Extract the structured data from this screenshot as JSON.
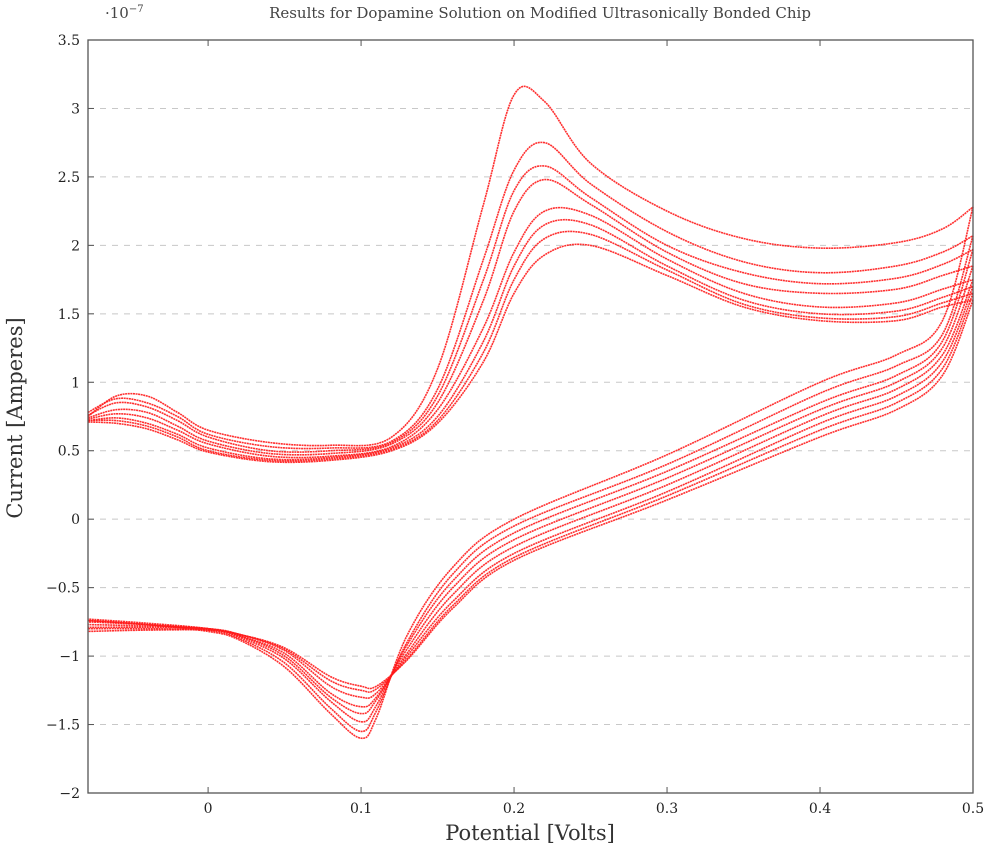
{
  "chart_data": {
    "type": "line",
    "title": "Results for Dopamine Solution on Modified Ultrasonically Bonded Chip",
    "y_scale_label": "·10",
    "y_scale_exponent": "−7",
    "xlabel": "Potential [Volts]",
    "ylabel": "Current [Amperes]",
    "xlim": [
      -0.0785,
      0.5
    ],
    "ylim": [
      -2,
      3.5
    ],
    "x_ticks": [
      0,
      0.1,
      0.2,
      0.3,
      0.4,
      0.5
    ],
    "x_tick_labels": [
      "0",
      "0.1",
      "0.2",
      "0.3",
      "0.4",
      "0.5"
    ],
    "y_ticks": [
      -2,
      -1.5,
      -1,
      -0.5,
      0,
      0.5,
      1,
      1.5,
      2,
      2.5,
      3,
      3.5
    ],
    "y_tick_labels": [
      "−2",
      "−1.5",
      "−1",
      "−0.5",
      "0",
      "0.5",
      "1",
      "1.5",
      "2",
      "2.5",
      "3",
      "3.5"
    ],
    "grid": "horizontal dashed",
    "line_color": "#ff1a1a",
    "forward_x": [
      -0.0785,
      -0.06,
      -0.04,
      -0.02,
      0,
      0.04,
      0.08,
      0.12,
      0.15,
      0.18,
      0.2,
      0.22,
      0.25,
      0.3,
      0.35,
      0.4,
      0.45,
      0.48,
      0.5
    ],
    "reverse_x": [
      0.5,
      0.48,
      0.45,
      0.4,
      0.3,
      0.2,
      0.16,
      0.13,
      0.11,
      0.1,
      0.08,
      0.05,
      0.02,
      0,
      -0.04,
      -0.0785
    ],
    "series": [
      {
        "forward": [
          0.75,
          0.9,
          0.9,
          0.78,
          0.65,
          0.56,
          0.54,
          0.6,
          1.1,
          2.3,
          3.1,
          3.05,
          2.6,
          2.25,
          2.05,
          1.98,
          2.02,
          2.12,
          2.28
        ],
        "reverse": [
          2.28,
          1.45,
          1.2,
          1.0,
          0.47,
          0.0,
          -0.35,
          -0.85,
          -1.45,
          -1.6,
          -1.42,
          -1.08,
          -0.88,
          -0.82,
          -0.77,
          -0.74
        ]
      },
      {
        "forward": [
          0.78,
          0.88,
          0.85,
          0.75,
          0.62,
          0.53,
          0.52,
          0.57,
          0.95,
          1.9,
          2.55,
          2.75,
          2.45,
          2.1,
          1.88,
          1.8,
          1.85,
          1.95,
          2.07
        ],
        "reverse": [
          2.07,
          1.35,
          1.12,
          0.92,
          0.4,
          -0.05,
          -0.4,
          -0.9,
          -1.4,
          -1.55,
          -1.38,
          -1.05,
          -0.87,
          -0.81,
          -0.77,
          -0.74
        ]
      },
      {
        "forward": [
          0.76,
          0.85,
          0.82,
          0.72,
          0.6,
          0.5,
          0.5,
          0.56,
          0.9,
          1.75,
          2.4,
          2.58,
          2.35,
          2.0,
          1.8,
          1.72,
          1.76,
          1.86,
          1.97
        ],
        "reverse": [
          1.97,
          1.3,
          1.05,
          0.85,
          0.35,
          -0.1,
          -0.45,
          -0.92,
          -1.36,
          -1.48,
          -1.33,
          -1.02,
          -0.86,
          -0.8,
          -0.76,
          -0.73
        ]
      },
      {
        "forward": [
          0.74,
          0.8,
          0.78,
          0.68,
          0.57,
          0.48,
          0.48,
          0.55,
          0.85,
          1.6,
          2.25,
          2.48,
          2.3,
          1.95,
          1.72,
          1.65,
          1.68,
          1.78,
          1.85
        ],
        "reverse": [
          1.85,
          1.25,
          1.0,
          0.8,
          0.3,
          -0.15,
          -0.5,
          -0.95,
          -1.32,
          -1.42,
          -1.3,
          -1.0,
          -0.85,
          -0.8,
          -0.77,
          -0.75
        ]
      },
      {
        "forward": [
          0.73,
          0.77,
          0.74,
          0.65,
          0.55,
          0.46,
          0.46,
          0.53,
          0.8,
          1.4,
          1.95,
          2.25,
          2.22,
          1.9,
          1.65,
          1.55,
          1.58,
          1.68,
          1.75
        ],
        "reverse": [
          1.75,
          1.2,
          0.95,
          0.75,
          0.25,
          -0.2,
          -0.55,
          -0.98,
          -1.3,
          -1.37,
          -1.27,
          -0.98,
          -0.85,
          -0.8,
          -0.78,
          -0.77
        ]
      },
      {
        "forward": [
          0.72,
          0.74,
          0.7,
          0.62,
          0.52,
          0.44,
          0.45,
          0.52,
          0.75,
          1.3,
          1.85,
          2.15,
          2.15,
          1.85,
          1.6,
          1.5,
          1.52,
          1.62,
          1.7
        ],
        "reverse": [
          1.7,
          1.15,
          0.9,
          0.7,
          0.2,
          -0.25,
          -0.6,
          -1.0,
          -1.27,
          -1.3,
          -1.22,
          -0.96,
          -0.84,
          -0.8,
          -0.79,
          -0.79
        ]
      },
      {
        "forward": [
          0.72,
          0.72,
          0.68,
          0.6,
          0.5,
          0.43,
          0.44,
          0.51,
          0.72,
          1.22,
          1.75,
          2.05,
          2.08,
          1.82,
          1.57,
          1.47,
          1.48,
          1.58,
          1.65
        ],
        "reverse": [
          1.65,
          1.1,
          0.85,
          0.65,
          0.17,
          -0.28,
          -0.63,
          -1.02,
          -1.24,
          -1.25,
          -1.18,
          -0.95,
          -0.84,
          -0.81,
          -0.8,
          -0.8
        ]
      },
      {
        "forward": [
          0.71,
          0.7,
          0.66,
          0.58,
          0.49,
          0.42,
          0.43,
          0.5,
          0.7,
          1.15,
          1.65,
          1.93,
          2.0,
          1.78,
          1.55,
          1.45,
          1.45,
          1.55,
          1.6
        ],
        "reverse": [
          1.6,
          1.05,
          0.8,
          0.6,
          0.14,
          -0.3,
          -0.65,
          -1.03,
          -1.22,
          -1.22,
          -1.15,
          -0.94,
          -0.84,
          -0.81,
          -0.81,
          -0.82
        ]
      }
    ]
  }
}
